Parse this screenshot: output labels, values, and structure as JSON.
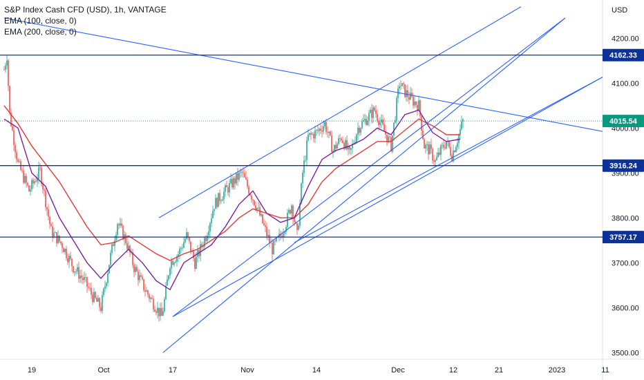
{
  "legend": {
    "title": "S&P Index Cash CFD (USD), 1h, VANTAGE",
    "ema100": "EMA (100, close, 0)",
    "ema200": "EMA (200, close, 0)"
  },
  "chart_data": {
    "type": "candlestick",
    "currency_label": "USD",
    "ylim": [
      3485,
      4285
    ],
    "y_ticks": [
      {
        "value": 3500,
        "label": "3500.00"
      },
      {
        "value": 3600,
        "label": "3600.00"
      },
      {
        "value": 3700,
        "label": "3700.00"
      },
      {
        "value": 3800,
        "label": "3800.00"
      },
      {
        "value": 3900,
        "label": "3900.00"
      },
      {
        "value": 4000,
        "label": "4000.00"
      },
      {
        "value": 4100,
        "label": "4100.00"
      },
      {
        "value": 4200,
        "label": "4200.00"
      }
    ],
    "x_ticks": [
      "19",
      "Oct",
      "17",
      "Nov",
      "14",
      "Dec",
      "12",
      "21",
      "2023",
      "11"
    ],
    "x_tick_index": [
      20,
      72,
      122,
      176,
      226,
      285,
      325,
      358,
      400,
      435
    ],
    "price_path": [
      [
        0,
        4130
      ],
      [
        2,
        4162
      ],
      [
        4,
        4030
      ],
      [
        10,
        3920
      ],
      [
        18,
        3860
      ],
      [
        26,
        3905
      ],
      [
        34,
        3770
      ],
      [
        42,
        3740
      ],
      [
        50,
        3690
      ],
      [
        58,
        3660
      ],
      [
        64,
        3625
      ],
      [
        70,
        3600
      ],
      [
        76,
        3700
      ],
      [
        82,
        3790
      ],
      [
        88,
        3750
      ],
      [
        94,
        3690
      ],
      [
        102,
        3640
      ],
      [
        108,
        3610
      ],
      [
        114,
        3580
      ],
      [
        116,
        3615
      ],
      [
        120,
        3700
      ],
      [
        126,
        3720
      ],
      [
        132,
        3760
      ],
      [
        138,
        3700
      ],
      [
        146,
        3760
      ],
      [
        152,
        3830
      ],
      [
        160,
        3860
      ],
      [
        166,
        3880
      ],
      [
        172,
        3900
      ],
      [
        176,
        3870
      ],
      [
        182,
        3830
      ],
      [
        188,
        3780
      ],
      [
        194,
        3730
      ],
      [
        200,
        3760
      ],
      [
        204,
        3790
      ],
      [
        208,
        3830
      ],
      [
        212,
        3760
      ],
      [
        216,
        3900
      ],
      [
        220,
        3980
      ],
      [
        226,
        3990
      ],
      [
        232,
        4010
      ],
      [
        238,
        3950
      ],
      [
        244,
        3980
      ],
      [
        250,
        3940
      ],
      [
        256,
        4000
      ],
      [
        262,
        4020
      ],
      [
        268,
        4040
      ],
      [
        274,
        4000
      ],
      [
        280,
        3960
      ],
      [
        286,
        4100
      ],
      [
        290,
        4080
      ],
      [
        296,
        4060
      ],
      [
        300,
        4050
      ],
      [
        304,
        3960
      ],
      [
        308,
        3950
      ],
      [
        312,
        3925
      ],
      [
        316,
        3950
      ],
      [
        320,
        3970
      ],
      [
        324,
        3940
      ],
      [
        328,
        3975
      ],
      [
        332,
        4015
      ]
    ],
    "ema100_points": [
      [
        0,
        4020
      ],
      [
        10,
        4000
      ],
      [
        20,
        3900
      ],
      [
        30,
        3870
      ],
      [
        40,
        3800
      ],
      [
        50,
        3750
      ],
      [
        60,
        3700
      ],
      [
        70,
        3665
      ],
      [
        80,
        3700
      ],
      [
        90,
        3730
      ],
      [
        100,
        3700
      ],
      [
        110,
        3660
      ],
      [
        120,
        3640
      ],
      [
        130,
        3700
      ],
      [
        140,
        3720
      ],
      [
        150,
        3740
      ],
      [
        160,
        3780
      ],
      [
        170,
        3830
      ],
      [
        180,
        3860
      ],
      [
        190,
        3810
      ],
      [
        200,
        3790
      ],
      [
        210,
        3800
      ],
      [
        220,
        3870
      ],
      [
        230,
        3930
      ],
      [
        240,
        3950
      ],
      [
        250,
        3960
      ],
      [
        260,
        3975
      ],
      [
        270,
        4000
      ],
      [
        280,
        3985
      ],
      [
        290,
        4030
      ],
      [
        300,
        4040
      ],
      [
        310,
        3990
      ],
      [
        320,
        3970
      ],
      [
        330,
        3975
      ]
    ],
    "ema200_points": [
      [
        0,
        4050
      ],
      [
        10,
        4010
      ],
      [
        20,
        3960
      ],
      [
        30,
        3920
      ],
      [
        40,
        3880
      ],
      [
        50,
        3830
      ],
      [
        60,
        3780
      ],
      [
        70,
        3740
      ],
      [
        80,
        3745
      ],
      [
        90,
        3760
      ],
      [
        100,
        3740
      ],
      [
        110,
        3720
      ],
      [
        120,
        3705
      ],
      [
        130,
        3720
      ],
      [
        140,
        3730
      ],
      [
        150,
        3750
      ],
      [
        160,
        3770
      ],
      [
        170,
        3800
      ],
      [
        180,
        3820
      ],
      [
        190,
        3810
      ],
      [
        200,
        3800
      ],
      [
        210,
        3800
      ],
      [
        220,
        3830
      ],
      [
        230,
        3880
      ],
      [
        240,
        3910
      ],
      [
        250,
        3930
      ],
      [
        260,
        3950
      ],
      [
        270,
        3970
      ],
      [
        280,
        3970
      ],
      [
        290,
        3995
      ],
      [
        300,
        4020
      ],
      [
        310,
        4005
      ],
      [
        320,
        3985
      ],
      [
        330,
        3985
      ]
    ],
    "horizontal_levels": [
      {
        "value": 4162.33,
        "label": "4162.33",
        "style": "solid"
      },
      {
        "value": 3916.24,
        "label": "3916.24",
        "style": "solid"
      },
      {
        "value": 3757.17,
        "label": "3757.17",
        "style": "solid"
      },
      {
        "value": 4015.54,
        "label": "4015.54",
        "style": "dotted",
        "current": true
      }
    ],
    "trend_lines": [
      {
        "from": [
          0,
          4245
        ],
        "to": [
          437,
          3990
        ]
      },
      {
        "from": [
          112,
          3800
        ],
        "to": [
          374,
          4270
        ]
      },
      {
        "from": [
          122,
          3580
        ],
        "to": [
          406,
          4245
        ]
      },
      {
        "from": [
          115,
          3500
        ],
        "to": [
          406,
          4245
        ]
      },
      {
        "from": [
          210,
          3745
        ],
        "to": [
          434,
          4115
        ]
      },
      {
        "from": [
          122,
          3580
        ],
        "to": [
          434,
          4115
        ]
      }
    ],
    "colors": {
      "up": "#26a69a",
      "down": "#ef5350",
      "ema100": "#7b1fa2",
      "ema200": "#e53935",
      "level_line": "#0c3299",
      "trend_line": "#2962ff",
      "current_price": "#089981",
      "level_badge": "#0c3299"
    }
  }
}
